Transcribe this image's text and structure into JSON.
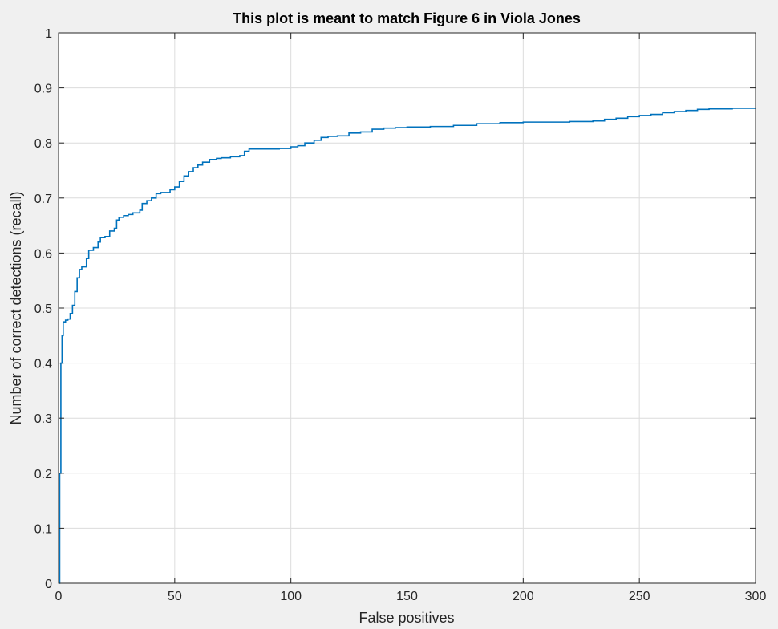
{
  "chart_data": {
    "type": "line",
    "title": "This plot is meant to match Figure 6 in Viola Jones",
    "xlabel": "False positives",
    "ylabel": "Number of correct detections (recall)",
    "xlim": [
      0,
      300
    ],
    "ylim": [
      0,
      1
    ],
    "x_ticks": [
      0,
      50,
      100,
      150,
      200,
      250,
      300
    ],
    "x_tick_labels": [
      "0",
      "50",
      "100",
      "150",
      "200",
      "250",
      "300"
    ],
    "y_ticks": [
      0,
      0.1,
      0.2,
      0.3,
      0.4,
      0.5,
      0.6,
      0.7,
      0.8,
      0.9,
      1
    ],
    "y_tick_labels": [
      "0",
      "0.1",
      "0.2",
      "0.3",
      "0.4",
      "0.5",
      "0.6",
      "0.7",
      "0.8",
      "0.9",
      "1"
    ],
    "grid": true,
    "line_color": "#0072bd",
    "series": [
      {
        "x": [
          0,
          0.5,
          1,
          1.5,
          2,
          3,
          4,
          5,
          6,
          7,
          8,
          9,
          10,
          12,
          13,
          15,
          17,
          18,
          20,
          22,
          24,
          25,
          26,
          28,
          30,
          32,
          35,
          36,
          38,
          40,
          42,
          44,
          48,
          50,
          52,
          54,
          56,
          58,
          60,
          62,
          65,
          68,
          70,
          74,
          78,
          80,
          82,
          85,
          90,
          95,
          100,
          103,
          106,
          110,
          113,
          116,
          120,
          125,
          130,
          135,
          140,
          145,
          150,
          160,
          170,
          180,
          190,
          200,
          210,
          220,
          230,
          235,
          240,
          245,
          250,
          255,
          260,
          265,
          270,
          275,
          280,
          290,
          300
        ],
        "y": [
          0,
          0.2,
          0.4,
          0.45,
          0.475,
          0.478,
          0.48,
          0.49,
          0.505,
          0.53,
          0.555,
          0.57,
          0.575,
          0.59,
          0.605,
          0.61,
          0.62,
          0.628,
          0.63,
          0.64,
          0.645,
          0.66,
          0.665,
          0.668,
          0.67,
          0.673,
          0.678,
          0.69,
          0.695,
          0.7,
          0.708,
          0.71,
          0.715,
          0.72,
          0.73,
          0.74,
          0.748,
          0.755,
          0.76,
          0.765,
          0.77,
          0.772,
          0.773,
          0.775,
          0.777,
          0.785,
          0.789,
          0.789,
          0.789,
          0.79,
          0.793,
          0.795,
          0.8,
          0.805,
          0.81,
          0.812,
          0.813,
          0.818,
          0.82,
          0.825,
          0.827,
          0.828,
          0.829,
          0.83,
          0.832,
          0.835,
          0.837,
          0.838,
          0.838,
          0.839,
          0.84,
          0.843,
          0.845,
          0.848,
          0.85,
          0.852,
          0.855,
          0.857,
          0.859,
          0.861,
          0.862,
          0.863,
          0.864
        ]
      }
    ]
  }
}
